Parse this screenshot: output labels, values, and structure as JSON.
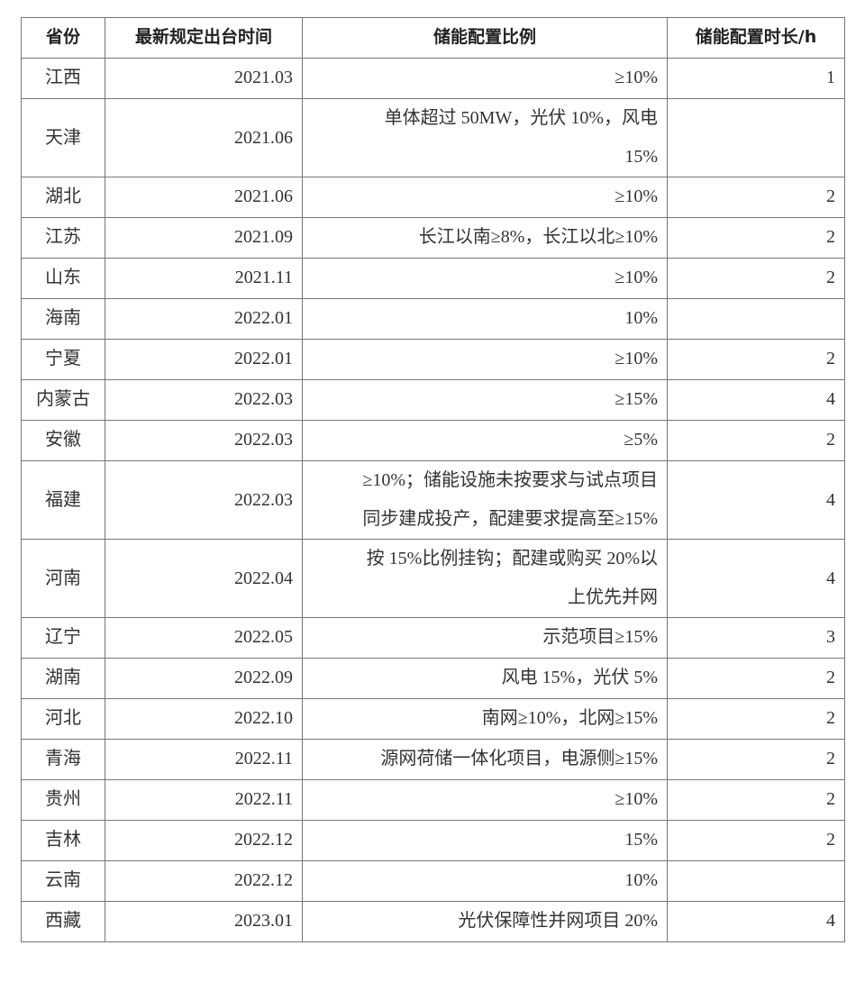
{
  "table": {
    "headers": [
      "省份",
      "最新规定出台时间",
      "储能配置比例",
      "储能配置时长/h"
    ],
    "rows": [
      {
        "province": "江西",
        "date": "2021.03",
        "ratio": "≥10%",
        "hours": "1"
      },
      {
        "province": "天津",
        "date": "2021.06",
        "ratio": "单体超过 50MW，光伏 10%，风电\n15%",
        "hours": ""
      },
      {
        "province": "湖北",
        "date": "2021.06",
        "ratio": "≥10%",
        "hours": "2"
      },
      {
        "province": "江苏",
        "date": "2021.09",
        "ratio": "长江以南≥8%，长江以北≥10%",
        "hours": "2"
      },
      {
        "province": "山东",
        "date": "2021.11",
        "ratio": "≥10%",
        "hours": "2"
      },
      {
        "province": "海南",
        "date": "2022.01",
        "ratio": "10%",
        "hours": ""
      },
      {
        "province": "宁夏",
        "date": "2022.01",
        "ratio": "≥10%",
        "hours": "2"
      },
      {
        "province": "内蒙古",
        "date": "2022.03",
        "ratio": "≥15%",
        "hours": "4"
      },
      {
        "province": "安徽",
        "date": "2022.03",
        "ratio": "≥5%",
        "hours": "2"
      },
      {
        "province": "福建",
        "date": "2022.03",
        "ratio": "≥10%；储能设施未按要求与试点项目\n同步建成投产，配建要求提高至≥15%",
        "hours": "4"
      },
      {
        "province": "河南",
        "date": "2022.04",
        "ratio": "按 15%比例挂钩；配建或购买 20%以\n上优先并网",
        "hours": "4"
      },
      {
        "province": "辽宁",
        "date": "2022.05",
        "ratio": "示范项目≥15%",
        "hours": "3"
      },
      {
        "province": "湖南",
        "date": "2022.09",
        "ratio": "风电 15%，光伏 5%",
        "hours": "2"
      },
      {
        "province": "河北",
        "date": "2022.10",
        "ratio": "南网≥10%，北网≥15%",
        "hours": "2"
      },
      {
        "province": "青海",
        "date": "2022.11",
        "ratio": "源网荷储一体化项目，电源侧≥15%",
        "hours": "2"
      },
      {
        "province": "贵州",
        "date": "2022.11",
        "ratio": "≥10%",
        "hours": "2"
      },
      {
        "province": "吉林",
        "date": "2022.12",
        "ratio": "15%",
        "hours": "2"
      },
      {
        "province": "云南",
        "date": "2022.12",
        "ratio": "10%",
        "hours": ""
      },
      {
        "province": "西藏",
        "date": "2023.01",
        "ratio": "光伏保障性并网项目 20%",
        "hours": "4"
      }
    ]
  }
}
